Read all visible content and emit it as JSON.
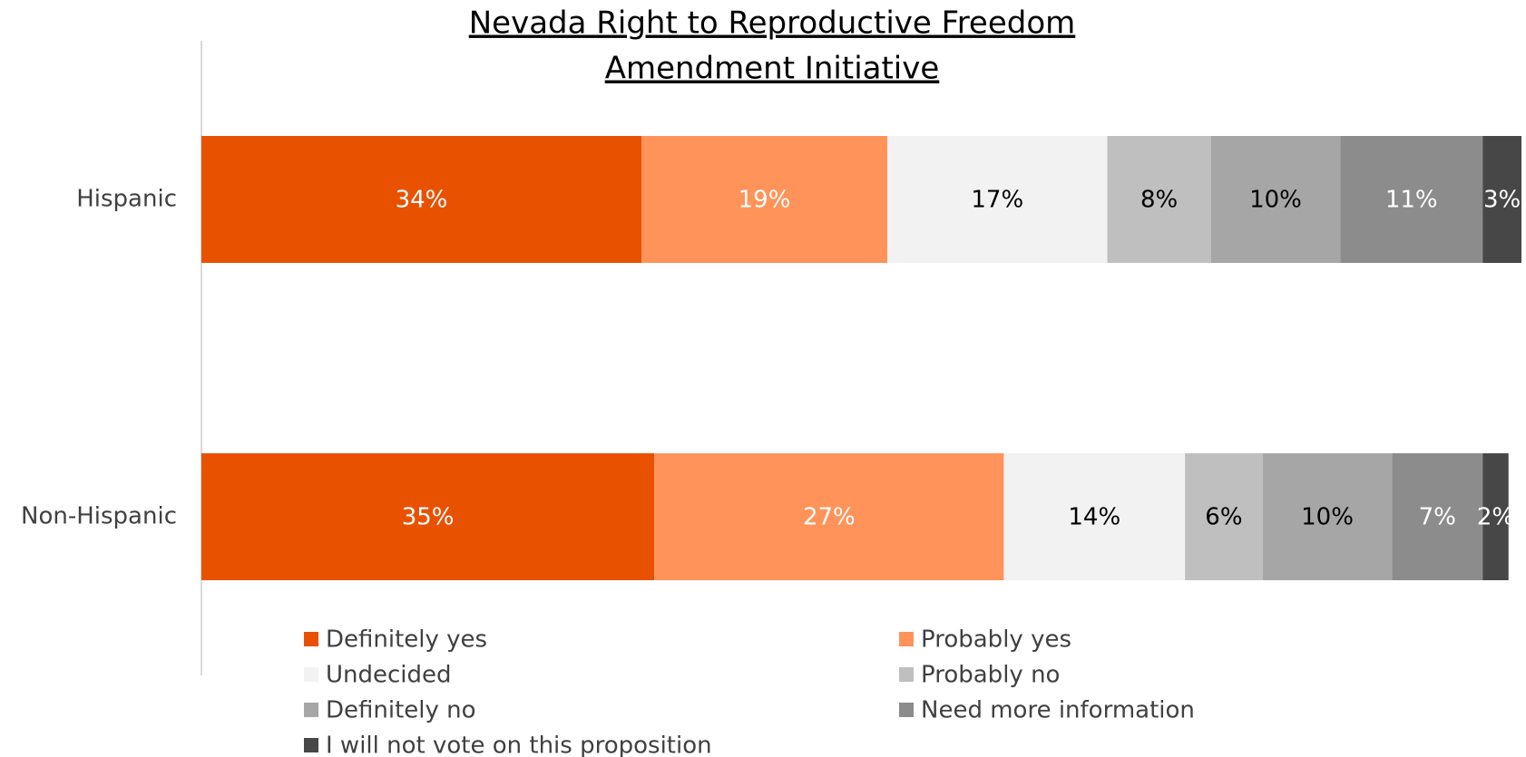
{
  "chart_data": {
    "type": "stacked_bar_horizontal",
    "title": [
      "Nevada Right to Reproductive Freedom",
      "Amendment Initiative"
    ],
    "categories": [
      "Hispanic",
      "Non-Hispanic"
    ],
    "series": [
      {
        "name": "Definitely yes",
        "color": "#e85100",
        "label_color": "#ffffff",
        "values": [
          34,
          35
        ],
        "value_labels": [
          "34%",
          "35%"
        ]
      },
      {
        "name": "Probably yes",
        "color": "#ff9359",
        "label_color": "#ffffff",
        "values": [
          19,
          27
        ],
        "value_labels": [
          "19%",
          "27%"
        ]
      },
      {
        "name": "Undecided",
        "color": "#f2f2f2",
        "label_color": "#000000",
        "values": [
          17,
          14
        ],
        "value_labels": [
          "17%",
          "14%"
        ]
      },
      {
        "name": "Probably no",
        "color": "#bfbfbf",
        "label_color": "#000000",
        "values": [
          8,
          6
        ],
        "value_labels": [
          "8%",
          "6%"
        ]
      },
      {
        "name": "Definitely no",
        "color": "#a6a6a6",
        "label_color": "#000000",
        "values": [
          10,
          10
        ],
        "value_labels": [
          "10%",
          "10%"
        ]
      },
      {
        "name": "Need more information",
        "color": "#8c8c8c",
        "label_color": "#ffffff",
        "values": [
          11,
          7
        ],
        "value_labels": [
          "11%",
          "7%"
        ]
      },
      {
        "name": "I will not vote on this proposition",
        "color": "#474747",
        "label_color": "#ffffff",
        "values": [
          3,
          2
        ],
        "value_labels": [
          "3%",
          "2%"
        ]
      }
    ]
  }
}
